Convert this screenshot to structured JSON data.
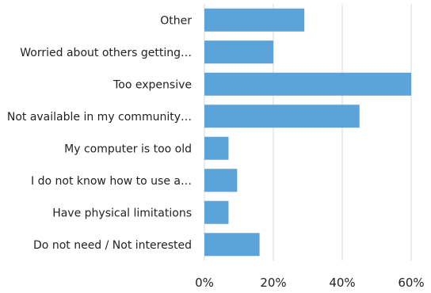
{
  "chart_data": {
    "type": "bar",
    "orientation": "horizontal",
    "categories": [
      "Other",
      "Worried about others getting…",
      "Too expensive",
      "Not available in my community…",
      "My computer is too old",
      "I do not know how to use a…",
      "Have physical limitations",
      "Do not need / Not interested"
    ],
    "values": [
      29,
      20,
      60,
      45,
      7,
      9.5,
      7,
      16
    ],
    "x_ticks": [
      "0%",
      "20%",
      "40%",
      "60%"
    ],
    "xlim": [
      0,
      60
    ],
    "grid": true,
    "legend": "none",
    "bar_color": "#5ba3d9",
    "grid_color": "#d9d9d9"
  }
}
